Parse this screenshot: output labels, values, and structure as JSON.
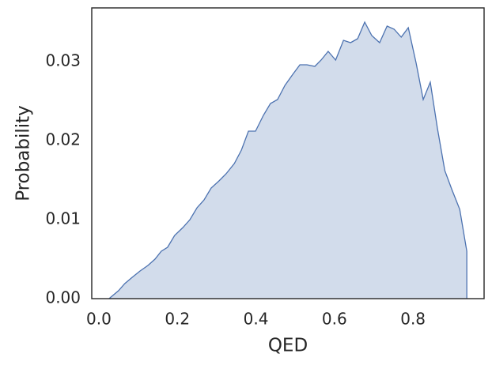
{
  "chart_data": {
    "type": "area",
    "xlabel": "QED",
    "ylabel": "Probability",
    "x": [
      0.026,
      0.05,
      0.066,
      0.085,
      0.105,
      0.125,
      0.143,
      0.159,
      0.175,
      0.193,
      0.214,
      0.232,
      0.25,
      0.268,
      0.286,
      0.306,
      0.324,
      0.345,
      0.363,
      0.381,
      0.399,
      0.419,
      0.437,
      0.455,
      0.474,
      0.494,
      0.512,
      0.53,
      0.55,
      0.566,
      0.584,
      0.603,
      0.623,
      0.641,
      0.659,
      0.677,
      0.695,
      0.715,
      0.734,
      0.752,
      0.77,
      0.788,
      0.808,
      0.826,
      0.844,
      0.862,
      0.881,
      0.899,
      0.919,
      0.937,
      0.937
    ],
    "values": [
      0,
      0.001,
      0.0019,
      0.0027,
      0.0035,
      0.0042,
      0.005,
      0.006,
      0.0065,
      0.008,
      0.009,
      0.01,
      0.0115,
      0.0125,
      0.014,
      0.0149,
      0.0158,
      0.0171,
      0.0188,
      0.0212,
      0.0212,
      0.0232,
      0.0247,
      0.0252,
      0.027,
      0.0284,
      0.0296,
      0.0296,
      0.0294,
      0.0302,
      0.0313,
      0.0302,
      0.0327,
      0.0324,
      0.0329,
      0.035,
      0.0333,
      0.0324,
      0.0345,
      0.0341,
      0.0331,
      0.0343,
      0.0298,
      0.0252,
      0.0274,
      0.0216,
      0.0162,
      0.0138,
      0.0113,
      0.006,
      0
    ],
    "color": "#4c72b0",
    "fill_opacity": 0.25,
    "xlim": [
      -0.018,
      0.981
    ],
    "xticks": [
      {
        "value": 0,
        "label": "0.0"
      },
      0.2,
      0.4,
      0.6,
      0.8
    ],
    "ylim": [
      0,
      0.0368
    ],
    "yticks": [
      {
        "value": 0,
        "label": "0.00"
      },
      0.01,
      0.02,
      0.03
    ],
    "grid": false
  }
}
